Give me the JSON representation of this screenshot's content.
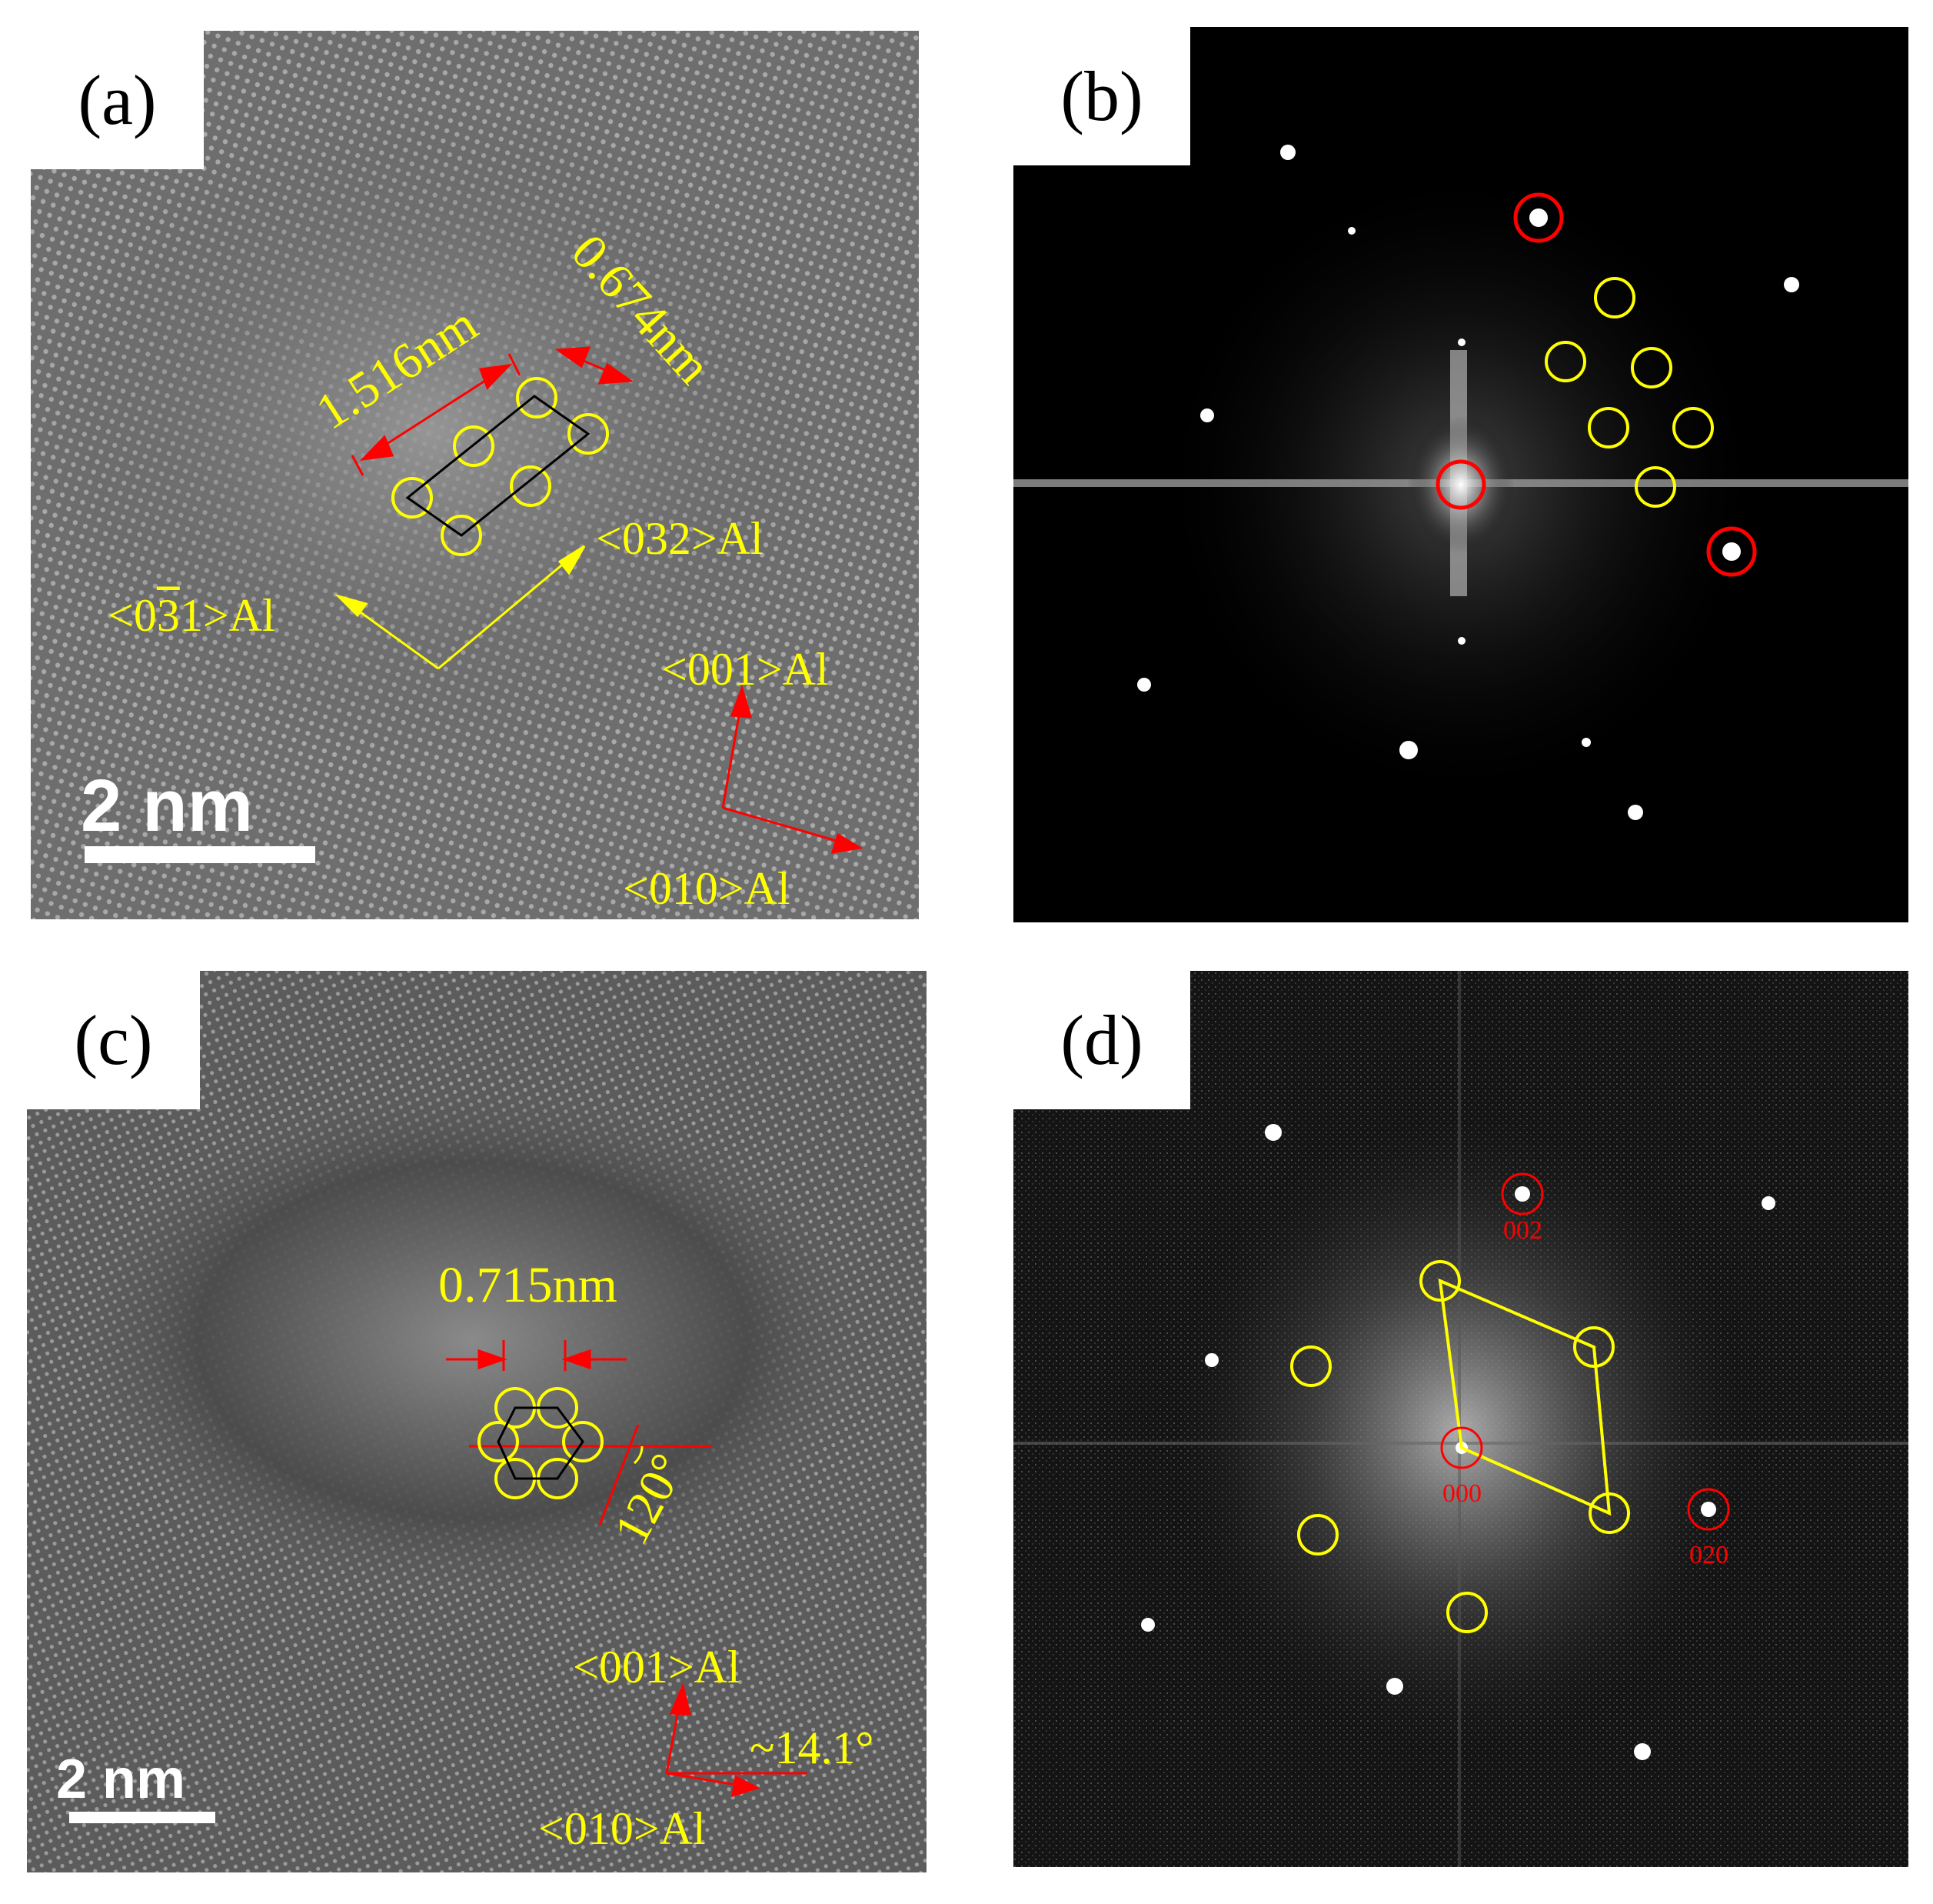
{
  "panel_a": {
    "label": "(a)",
    "dim_long": "1.516nm",
    "dim_short": "0.674nm",
    "dir_032": "<032>Al",
    "dir_031": "<0",
    "dir_031_bar": "3",
    "dir_031_tail": "1>Al",
    "dir_001": "<001>Al",
    "dir_010": "<010>Al",
    "scale": "2 nm"
  },
  "panel_b": {
    "label": "(b)"
  },
  "panel_c": {
    "label": "(c)",
    "dim": "0.715nm",
    "angle": "120°",
    "dir_001": "<001>Al",
    "dir_010": "<010>Al",
    "tilt": "~14.1°",
    "scale": "2 nm"
  },
  "panel_d": {
    "label": "(d)",
    "spot_002": "002",
    "spot_000": "000",
    "spot_020": "020"
  },
  "colors": {
    "annotation_yellow": "#ffff00",
    "arrow_red": "#ff0000",
    "fft_background": "#000000"
  }
}
